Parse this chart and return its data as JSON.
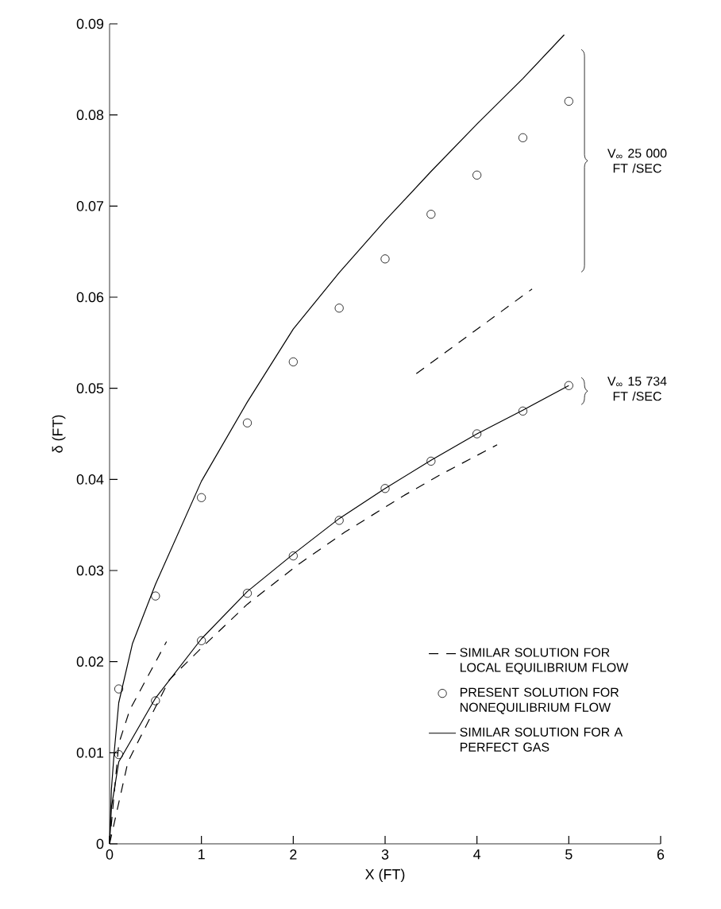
{
  "chart_data": {
    "type": "line",
    "xlabel": "X (FT)",
    "ylabel": "δ (FT)",
    "xlim": [
      0,
      6
    ],
    "ylim": [
      0,
      0.09
    ],
    "xticks": [
      0,
      1,
      2,
      3,
      4,
      5,
      6
    ],
    "yticks": [
      0,
      0.01,
      0.02,
      0.03,
      0.04,
      0.05,
      0.06,
      0.07,
      0.08,
      0.09
    ],
    "legend": "bottom right",
    "series": [
      {
        "name": "SIMILAR SOLUTION FOR LOCAL EQUILIBRIUM FLOW",
        "type": "line",
        "line_style": "dashed",
        "color": "#000000",
        "x": [
          0,
          0.1,
          0.22,
          0.62,
          2,
          3.34,
          4.6
        ],
        "values": [
          0,
          0.011,
          0.0147,
          0.0222,
          null,
          0.0516,
          0.0609
        ]
      },
      {
        "type": "line",
        "line_style": "dashed",
        "color": "#000000",
        "x": [
          0,
          0.2,
          0.65,
          1,
          1.5,
          2.06,
          2.56,
          3.2,
          3.6,
          4.22
        ],
        "values": [
          0,
          0.009,
          0.018,
          0.0215,
          0.0263,
          0.0307,
          0.0342,
          0.0382,
          0.0405,
          0.0438
        ]
      },
      {
        "name": "PRESENT SOLUTION FOR NONEQUILIBRIUM FLOW",
        "type": "scatter",
        "marker": "circle",
        "color": "#000000",
        "x": [
          0.1,
          0.5,
          1,
          1.5,
          2,
          2.5,
          3,
          3.5,
          4,
          4.5,
          5
        ],
        "values": [
          0.017,
          0.0272,
          0.038,
          0.0462,
          0.0529,
          0.0588,
          0.0642,
          0.0691,
          0.0734,
          0.0775,
          0.0815
        ]
      },
      {
        "type": "scatter",
        "marker": "circle",
        "color": "#000000",
        "x": [
          0.1,
          0.5,
          1,
          1.5,
          2,
          2.5,
          3,
          3.5,
          4,
          4.5,
          5
        ],
        "values": [
          0.0098,
          0.0157,
          0.0223,
          0.0275,
          0.0316,
          0.0355,
          0.039,
          0.042,
          0.045,
          0.0475,
          0.0503
        ]
      },
      {
        "name": "SIMILAR SOLUTION FOR A PERFECT GAS",
        "type": "line",
        "line_style": "solid",
        "color": "#000000",
        "x": [
          0,
          0.02,
          0.05,
          0.1,
          0.25,
          0.5,
          1,
          1.5,
          2,
          2.5,
          3,
          3.5,
          4,
          4.5,
          4.95
        ],
        "values": [
          0,
          0.006,
          0.01,
          0.0155,
          0.022,
          0.0285,
          0.0398,
          0.0485,
          0.0565,
          0.0627,
          0.0684,
          0.0738,
          0.079,
          0.084,
          0.0888
        ]
      },
      {
        "type": "line",
        "line_style": "solid",
        "color": "#000000",
        "x": [
          0,
          0.02,
          0.1,
          0.5,
          1,
          1.5,
          2,
          2.5,
          3,
          3.5,
          4,
          4.5,
          5
        ],
        "values": [
          0,
          0.004,
          0.009,
          0.016,
          0.0225,
          0.0277,
          0.0318,
          0.0357,
          0.039,
          0.0421,
          0.045,
          0.0476,
          0.0503
        ]
      }
    ],
    "annotations": [
      "V$_{∞}$ 25 000 FT /SEC",
      "V$_{∞}$ 15 734 FT /SEC"
    ]
  }
}
